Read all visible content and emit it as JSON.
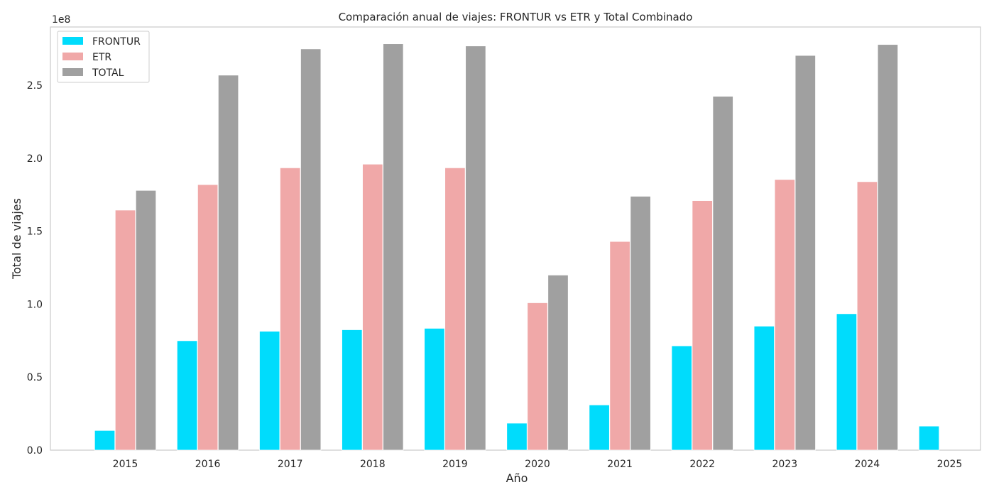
{
  "chart_data": {
    "type": "bar",
    "title": "Comparación anual de viajes: FRONTUR vs ETR y Total Combinado",
    "xlabel": "Año",
    "ylabel": "Total de viajes",
    "y_offset_label": "1e8",
    "y_scale": 100000000,
    "ylim": [
      0,
      290000000
    ],
    "y_ticks": [
      0,
      0.5,
      1.0,
      1.5,
      2.0,
      2.5
    ],
    "y_tick_labels": [
      "0.0",
      "0.5",
      "1.0",
      "1.5",
      "2.0",
      "2.5"
    ],
    "grid": false,
    "legend_position": "top-left",
    "categories": [
      "2015",
      "2016",
      "2017",
      "2018",
      "2019",
      "2020",
      "2021",
      "2022",
      "2023",
      "2024",
      "2025"
    ],
    "series": [
      {
        "name": "FRONTUR",
        "color": "#00dcfc",
        "values": [
          13500000,
          75000000,
          81500000,
          82500000,
          83500000,
          18500000,
          31000000,
          71500000,
          85000000,
          93500000,
          16500000
        ]
      },
      {
        "name": "ETR",
        "color": "#f0a8a8",
        "values": [
          164500000,
          182000000,
          193500000,
          196000000,
          193500000,
          101000000,
          143000000,
          171000000,
          185500000,
          184000000,
          null
        ]
      },
      {
        "name": "TOTAL",
        "color": "#a0a0a0",
        "values": [
          178000000,
          257000000,
          275000000,
          278500000,
          277000000,
          120000000,
          174000000,
          242500000,
          270500000,
          278000000,
          null
        ]
      }
    ]
  }
}
